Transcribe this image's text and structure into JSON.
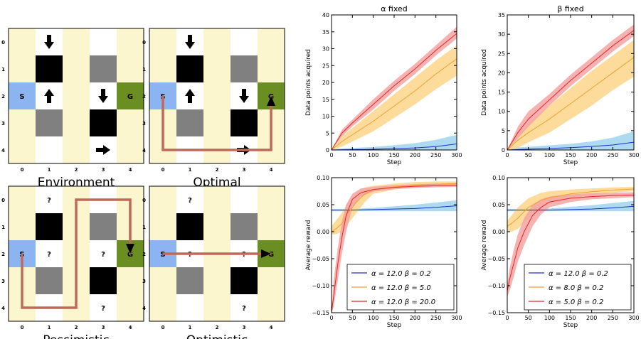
{
  "colors": {
    "cream": "#fbf6cd",
    "white": "#ffffff",
    "black": "#000000",
    "gray": "#808080",
    "start": "#8cb4f0",
    "goal": "#6b8e23",
    "path": "#c0695a",
    "blue": "#1f2dc8",
    "orange": "#f0a030",
    "red": "#e02828",
    "blue_band": "#9fd3ee",
    "orange_band": "#fdd58a",
    "red_band": "#f5a3a3"
  },
  "grids": {
    "x_ticks": [
      "0",
      "1",
      "2",
      "3",
      "4"
    ],
    "y_ticks": [
      "0",
      "1",
      "2",
      "3",
      "4"
    ],
    "start_label": "S",
    "goal_label": "G",
    "unknown_label": "?",
    "panels": [
      {
        "name": "environment",
        "title": "Environment",
        "mode": "arrows",
        "path": []
      },
      {
        "name": "optimal",
        "title": "Optimal",
        "mode": "arrows",
        "path": [
          [
            0,
            2
          ],
          [
            0,
            4
          ],
          [
            4,
            4
          ],
          [
            4,
            2
          ]
        ]
      },
      {
        "name": "pessimistic",
        "title": "Pessimistic",
        "mode": "unknown",
        "path": [
          [
            0,
            2
          ],
          [
            0,
            4
          ],
          [
            2,
            4
          ],
          [
            2,
            0
          ],
          [
            4,
            0
          ],
          [
            4,
            2
          ]
        ]
      },
      {
        "name": "optimistic",
        "title": "Optimistic",
        "mode": "unknown",
        "path": [
          [
            0,
            2
          ],
          [
            4,
            2
          ]
        ]
      }
    ]
  },
  "chart_data": [
    {
      "type": "line",
      "title": "α fixed",
      "xlabel": "Step",
      "ylabel": "Data points acquired",
      "xlim": [
        0,
        300
      ],
      "ylim": [
        0,
        40
      ],
      "xticks": [
        0,
        50,
        100,
        150,
        200,
        250,
        300
      ],
      "yticks": [
        0,
        5,
        10,
        15,
        20,
        25,
        30,
        35,
        40
      ],
      "xtick_labels": [
        "0",
        "50",
        "100",
        "150",
        "200",
        "250",
        "300"
      ],
      "ytick_labels": [
        "0",
        "5",
        "10",
        "15",
        "20",
        "25",
        "30",
        "35",
        "40"
      ],
      "series": [
        {
          "color": "blue",
          "x": [
            0,
            50,
            100,
            150,
            200,
            250,
            300
          ],
          "y": [
            0,
            0.1,
            0.2,
            0.4,
            0.6,
            1.0,
            1.8
          ],
          "lo": [
            0,
            0,
            0,
            0,
            0,
            0,
            0
          ],
          "hi": [
            0.3,
            0.6,
            0.9,
            1.4,
            2.0,
            3.0,
            4.5
          ]
        },
        {
          "color": "orange",
          "x": [
            0,
            25,
            50,
            100,
            150,
            200,
            250,
            300
          ],
          "y": [
            0,
            2.5,
            4.5,
            8.5,
            13,
            17.5,
            22.5,
            27
          ],
          "lo": [
            0,
            1,
            2.5,
            5.5,
            9.5,
            13.5,
            18,
            22
          ],
          "hi": [
            0,
            4,
            6.5,
            11.5,
            16.5,
            21.5,
            26.5,
            31
          ]
        },
        {
          "color": "red",
          "x": [
            0,
            25,
            50,
            100,
            150,
            200,
            250,
            300
          ],
          "y": [
            0,
            5,
            8,
            13.5,
            19,
            24,
            29.5,
            34.5
          ],
          "lo": [
            0,
            4,
            7,
            12,
            17.5,
            22.5,
            28,
            33
          ],
          "hi": [
            0,
            6,
            9,
            15,
            20.5,
            25.5,
            31,
            36.5
          ]
        }
      ]
    },
    {
      "type": "line",
      "title": "β fixed",
      "xlabel": "Step",
      "ylabel": "Data points acquired",
      "xlim": [
        0,
        300
      ],
      "ylim": [
        0,
        35
      ],
      "xticks": [
        0,
        50,
        100,
        150,
        200,
        250,
        300
      ],
      "yticks": [
        0,
        5,
        10,
        15,
        20,
        25,
        30,
        35
      ],
      "xtick_labels": [
        "0",
        "50",
        "100",
        "150",
        "200",
        "250",
        "300"
      ],
      "ytick_labels": [
        "0",
        "5",
        "10",
        "15",
        "20",
        "25",
        "30",
        "35"
      ],
      "series": [
        {
          "color": "blue",
          "x": [
            0,
            50,
            100,
            150,
            200,
            250,
            300
          ],
          "y": [
            0,
            0.2,
            0.4,
            0.6,
            0.9,
            1.3,
            2.0
          ],
          "lo": [
            0,
            0,
            0,
            0,
            0,
            0,
            0
          ],
          "hi": [
            0.5,
            0.8,
            1.2,
            1.6,
            2.2,
            3.2,
            4.8
          ]
        },
        {
          "color": "orange",
          "x": [
            0,
            25,
            50,
            100,
            150,
            200,
            250,
            300
          ],
          "y": [
            0,
            2.5,
            4.5,
            8,
            12,
            16,
            20,
            24
          ],
          "lo": [
            0,
            0.5,
            2,
            4.5,
            8,
            11.5,
            15.5,
            19
          ],
          "hi": [
            0,
            4.5,
            7,
            11.5,
            16,
            20.5,
            24.5,
            28.5
          ]
        },
        {
          "color": "red",
          "x": [
            0,
            25,
            50,
            100,
            150,
            200,
            250,
            300
          ],
          "y": [
            0,
            4.5,
            8,
            13,
            18,
            22.5,
            27,
            31
          ],
          "lo": [
            0,
            3,
            6,
            11.5,
            16.5,
            21,
            25.5,
            29.5
          ],
          "hi": [
            0,
            6,
            10,
            14.5,
            19.5,
            24,
            28.5,
            32.5
          ]
        }
      ]
    },
    {
      "type": "line",
      "xlabel": "Step",
      "ylabel": "Average reward",
      "xlim": [
        0,
        300
      ],
      "ylim": [
        -0.15,
        0.1
      ],
      "xticks": [
        0,
        50,
        100,
        150,
        200,
        250,
        300
      ],
      "yticks": [
        -0.15,
        -0.1,
        -0.05,
        0,
        0.05,
        0.1
      ],
      "xtick_labels": [
        "0",
        "50",
        "100",
        "150",
        "200",
        "250",
        "300"
      ],
      "ytick_labels": [
        "−0.15",
        "−0.10",
        "−0.05",
        "0.00",
        "0.05",
        "0.10"
      ],
      "legend_placement": "lower-right",
      "series": [
        {
          "color": "blue",
          "name": "α = 12.0   β = 0.2",
          "x": [
            0,
            50,
            100,
            150,
            200,
            250,
            300
          ],
          "y": [
            0.04,
            0.04,
            0.041,
            0.042,
            0.043,
            0.045,
            0.048
          ],
          "lo": [
            0.038,
            0.038,
            0.038,
            0.038,
            0.038,
            0.038,
            0.038
          ],
          "hi": [
            0.042,
            0.042,
            0.044,
            0.047,
            0.05,
            0.054,
            0.058
          ]
        },
        {
          "color": "orange",
          "name": "α = 12.0   β = 5.0",
          "x": [
            0,
            10,
            25,
            40,
            60,
            80,
            100,
            150,
            200,
            250,
            300
          ],
          "y": [
            0.0,
            0.005,
            0.015,
            0.035,
            0.055,
            0.07,
            0.078,
            0.083,
            0.086,
            0.088,
            0.089
          ],
          "lo": [
            -0.005,
            -0.005,
            0.0,
            0.015,
            0.035,
            0.055,
            0.07,
            0.078,
            0.082,
            0.084,
            0.085
          ],
          "hi": [
            0.01,
            0.02,
            0.035,
            0.055,
            0.072,
            0.082,
            0.085,
            0.089,
            0.092,
            0.093,
            0.093
          ]
        },
        {
          "color": "red",
          "name": "α = 12.0   β = 20.0",
          "x": [
            0,
            5,
            15,
            25,
            35,
            50,
            70,
            100,
            150,
            200,
            250,
            300
          ],
          "y": [
            -0.15,
            -0.12,
            -0.06,
            -0.01,
            0.03,
            0.06,
            0.072,
            0.078,
            0.082,
            0.084,
            0.085,
            0.086
          ],
          "lo": [
            -0.15,
            -0.14,
            -0.09,
            -0.04,
            0.0,
            0.045,
            0.065,
            0.074,
            0.079,
            0.081,
            0.082,
            0.083
          ],
          "hi": [
            -0.15,
            -0.09,
            -0.03,
            0.02,
            0.05,
            0.07,
            0.08,
            0.083,
            0.086,
            0.088,
            0.089,
            0.09
          ]
        }
      ]
    },
    {
      "type": "line",
      "xlabel": "Step",
      "ylabel": "Average reward",
      "xlim": [
        0,
        300
      ],
      "ylim": [
        -0.15,
        0.1
      ],
      "xticks": [
        0,
        50,
        100,
        150,
        200,
        250,
        300
      ],
      "yticks": [
        -0.15,
        -0.1,
        -0.05,
        0,
        0.05,
        0.1
      ],
      "xtick_labels": [
        "0",
        "50",
        "100",
        "150",
        "200",
        "250",
        "300"
      ],
      "ytick_labels": [
        "−0.15",
        "−0.10",
        "−0.05",
        "0.00",
        "0.05",
        "0.10"
      ],
      "legend_placement": "lower-right",
      "series": [
        {
          "color": "blue",
          "name": "α = 12.0   β = 0.2",
          "x": [
            0,
            50,
            100,
            150,
            200,
            250,
            300
          ],
          "y": [
            0.04,
            0.04,
            0.04,
            0.041,
            0.042,
            0.044,
            0.047
          ],
          "lo": [
            0.038,
            0.038,
            0.038,
            0.038,
            0.038,
            0.038,
            0.038
          ],
          "hi": [
            0.042,
            0.042,
            0.043,
            0.046,
            0.049,
            0.053,
            0.057
          ]
        },
        {
          "color": "orange",
          "name": "α = 8.0   β = 0.2",
          "x": [
            0,
            10,
            25,
            50,
            80,
            100,
            150,
            200,
            250,
            300
          ],
          "y": [
            0.01,
            0.015,
            0.025,
            0.045,
            0.058,
            0.063,
            0.07,
            0.074,
            0.077,
            0.079
          ],
          "lo": [
            0.0,
            0.0,
            0.005,
            0.025,
            0.043,
            0.053,
            0.063,
            0.068,
            0.072,
            0.075
          ],
          "hi": [
            0.02,
            0.03,
            0.045,
            0.062,
            0.072,
            0.075,
            0.078,
            0.08,
            0.082,
            0.083
          ]
        },
        {
          "color": "red",
          "name": "α = 5.0   β = 0.2",
          "x": [
            0,
            5,
            15,
            25,
            40,
            60,
            80,
            100,
            150,
            200,
            250,
            300
          ],
          "y": [
            -0.11,
            -0.09,
            -0.06,
            -0.03,
            0.0,
            0.03,
            0.045,
            0.055,
            0.062,
            0.065,
            0.067,
            0.068
          ],
          "lo": [
            -0.12,
            -0.11,
            -0.085,
            -0.055,
            -0.025,
            0.01,
            0.032,
            0.045,
            0.055,
            0.06,
            0.062,
            0.064
          ],
          "hi": [
            -0.1,
            -0.07,
            -0.035,
            -0.005,
            0.025,
            0.05,
            0.06,
            0.065,
            0.069,
            0.071,
            0.072,
            0.073
          ]
        }
      ]
    }
  ]
}
